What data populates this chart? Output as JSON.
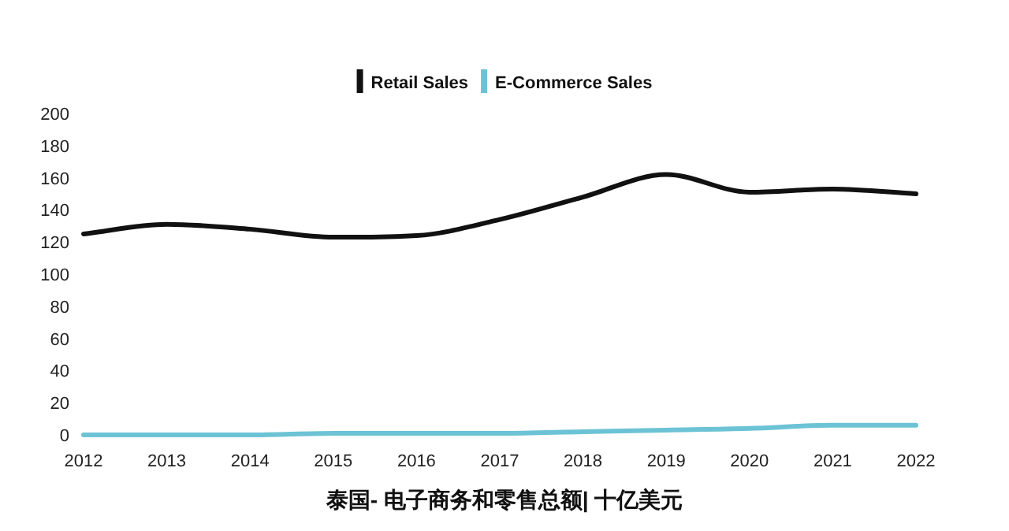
{
  "chart_data": {
    "type": "line",
    "title": "泰国- 电子商务和零售总额| 十亿美元",
    "x": [
      2012,
      2013,
      2014,
      2015,
      2016,
      2017,
      2018,
      2019,
      2020,
      2021,
      2022
    ],
    "series": [
      {
        "name": "Retail Sales",
        "color": "#111111",
        "values": [
          125,
          131,
          128,
          123,
          124,
          134,
          148,
          162,
          151,
          153,
          150
        ]
      },
      {
        "name": "E-Commerce Sales",
        "color": "#6cc3d5",
        "values": [
          0,
          0,
          0,
          1,
          1,
          1,
          2,
          3,
          4,
          6,
          6
        ]
      }
    ],
    "xlim": [
      2012,
      2022
    ],
    "xticks": [
      2012,
      2013,
      2014,
      2015,
      2016,
      2017,
      2018,
      2019,
      2020,
      2021,
      2022
    ],
    "ylim": [
      0,
      200
    ],
    "yticks": [
      0,
      20,
      40,
      60,
      80,
      100,
      120,
      140,
      160,
      180,
      200
    ],
    "grid": false,
    "legend": "top",
    "marker": "none",
    "line_style": "solid"
  }
}
